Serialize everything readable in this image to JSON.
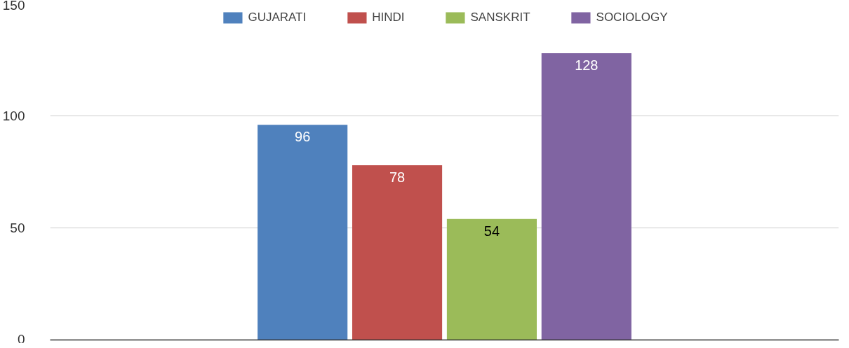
{
  "chart_data": {
    "type": "bar",
    "categories": [
      null
    ],
    "series": [
      {
        "name": "GUJARATI",
        "color": "#4f81bd",
        "values": [
          96
        ]
      },
      {
        "name": "HINDI",
        "color": "#c0504d",
        "values": [
          78
        ]
      },
      {
        "name": "SANSKRIT",
        "color": "#9bbb59",
        "values": [
          54
        ]
      },
      {
        "name": "SOCIOLOGY",
        "color": "#8064a2",
        "values": [
          128
        ]
      }
    ],
    "ylim": [
      0,
      150
    ],
    "yticks": [
      0,
      50,
      100,
      150
    ],
    "grid": "y",
    "legend": "top",
    "data_labels": true
  }
}
